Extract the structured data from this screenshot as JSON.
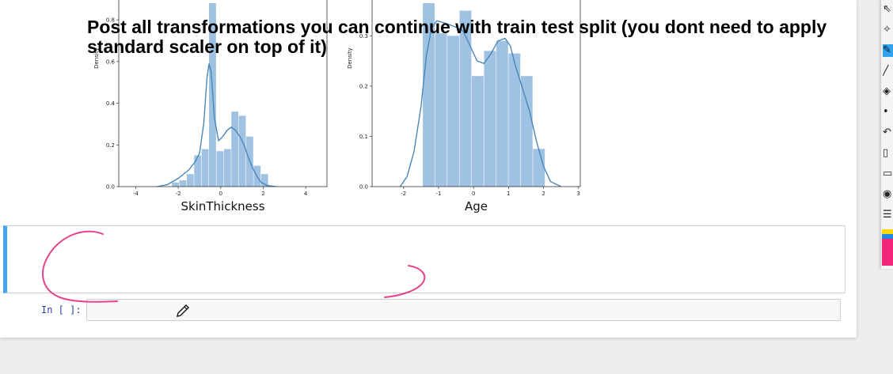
{
  "charts": {
    "skin": {
      "xlabel": "SkinThickness",
      "ylabel": "Density",
      "xlim": [
        -4.8,
        5.0
      ],
      "ylim": [
        0,
        0.88
      ],
      "xticks": [
        -4,
        -2,
        0,
        2,
        4
      ],
      "yticks": [
        0.0,
        0.2,
        0.4,
        0.6,
        0.8
      ],
      "ytick_labels": [
        "0.0",
        "0.2",
        "0.4",
        "0.6",
        "0.8"
      ],
      "xtick_labels": [
        "-4",
        "-2",
        "0",
        "2",
        "4"
      ],
      "bars": [
        {
          "x0": -2.3,
          "x1": -1.95,
          "h": 0.02
        },
        {
          "x0": -1.95,
          "x1": -1.6,
          "h": 0.03
        },
        {
          "x0": -1.6,
          "x1": -1.25,
          "h": 0.06
        },
        {
          "x0": -1.25,
          "x1": -0.9,
          "h": 0.15
        },
        {
          "x0": -0.9,
          "x1": -0.55,
          "h": 0.18
        },
        {
          "x0": -0.55,
          "x1": -0.2,
          "h": 0.95
        },
        {
          "x0": -0.2,
          "x1": 0.15,
          "h": 0.17
        },
        {
          "x0": 0.15,
          "x1": 0.5,
          "h": 0.18
        },
        {
          "x0": 0.5,
          "x1": 0.85,
          "h": 0.36
        },
        {
          "x0": 0.85,
          "x1": 1.2,
          "h": 0.34
        },
        {
          "x0": 1.2,
          "x1": 1.55,
          "h": 0.24
        },
        {
          "x0": 1.55,
          "x1": 1.9,
          "h": 0.1
        },
        {
          "x0": 1.9,
          "x1": 2.25,
          "h": 0.06
        }
      ],
      "kde": [
        [
          -3.0,
          0.0
        ],
        [
          -2.5,
          0.01
        ],
        [
          -2.0,
          0.04
        ],
        [
          -1.5,
          0.08
        ],
        [
          -1.2,
          0.12
        ],
        [
          -1.0,
          0.16
        ],
        [
          -0.8,
          0.3
        ],
        [
          -0.65,
          0.52
        ],
        [
          -0.55,
          0.59
        ],
        [
          -0.45,
          0.55
        ],
        [
          -0.3,
          0.33
        ],
        [
          -0.1,
          0.22
        ],
        [
          0.1,
          0.24
        ],
        [
          0.3,
          0.27
        ],
        [
          0.5,
          0.285
        ],
        [
          0.7,
          0.27
        ],
        [
          0.9,
          0.24
        ],
        [
          1.1,
          0.2
        ],
        [
          1.3,
          0.14
        ],
        [
          1.5,
          0.09
        ],
        [
          1.7,
          0.05
        ],
        [
          1.9,
          0.02
        ],
        [
          2.2,
          0.005
        ],
        [
          2.6,
          0.0
        ]
      ]
    },
    "age": {
      "xlabel": "Age",
      "ylabel": "Density",
      "xlim": [
        -2.9,
        3.05
      ],
      "ylim": [
        0,
        0.365
      ],
      "xticks": [
        -2,
        -1,
        0,
        1,
        2,
        3
      ],
      "yticks": [
        0.0,
        0.1,
        0.2,
        0.3
      ],
      "ytick_labels": [
        "0.0",
        "0.1",
        "0.2",
        "0.3"
      ],
      "xtick_labels": [
        "-2",
        "-1",
        "0",
        "1",
        "2",
        "3"
      ],
      "bars": [
        {
          "x0": -1.45,
          "x1": -1.1,
          "h": 0.42
        },
        {
          "x0": -1.1,
          "x1": -0.75,
          "h": 0.305
        },
        {
          "x0": -0.75,
          "x1": -0.4,
          "h": 0.3
        },
        {
          "x0": -0.4,
          "x1": -0.05,
          "h": 0.35
        },
        {
          "x0": -0.05,
          "x1": 0.3,
          "h": 0.22
        },
        {
          "x0": 0.3,
          "x1": 0.65,
          "h": 0.27
        },
        {
          "x0": 0.65,
          "x1": 1.0,
          "h": 0.29
        },
        {
          "x0": 1.0,
          "x1": 1.35,
          "h": 0.265
        },
        {
          "x0": 1.35,
          "x1": 1.7,
          "h": 0.22
        },
        {
          "x0": 1.7,
          "x1": 2.05,
          "h": 0.075
        }
      ],
      "kde": [
        [
          -2.1,
          0.0
        ],
        [
          -1.9,
          0.02
        ],
        [
          -1.7,
          0.07
        ],
        [
          -1.5,
          0.16
        ],
        [
          -1.35,
          0.26
        ],
        [
          -1.2,
          0.315
        ],
        [
          -1.05,
          0.33
        ],
        [
          -0.8,
          0.325
        ],
        [
          -0.5,
          0.317
        ],
        [
          -0.3,
          0.31
        ],
        [
          -0.1,
          0.28
        ],
        [
          0.1,
          0.25
        ],
        [
          0.3,
          0.245
        ],
        [
          0.5,
          0.265
        ],
        [
          0.7,
          0.29
        ],
        [
          0.9,
          0.295
        ],
        [
          1.05,
          0.28
        ],
        [
          1.2,
          0.24
        ],
        [
          1.4,
          0.195
        ],
        [
          1.6,
          0.15
        ],
        [
          1.8,
          0.09
        ],
        [
          2.0,
          0.04
        ],
        [
          2.2,
          0.01
        ],
        [
          2.5,
          0.0
        ]
      ]
    }
  },
  "markdown": {
    "text": "Post all transformations you can continue with train test split (you dont need to apply standard scaler on top of it)"
  },
  "code_cell": {
    "prompt": "In [ ]:",
    "value": ""
  },
  "colors": {
    "bar_fill": "#9fc2e3",
    "kde_line": "#4a86b8",
    "cell_accent": "#42a5f5",
    "annotation": "#e8408a"
  },
  "toolbar": {
    "tools": [
      {
        "name": "select-tool",
        "glyph": "⇖"
      },
      {
        "name": "clear-tool",
        "glyph": "✧"
      },
      {
        "name": "pen-tool",
        "glyph": "✎",
        "active": true
      },
      {
        "name": "line-tool",
        "glyph": "╱"
      },
      {
        "name": "highlighter-tool",
        "glyph": "◈"
      },
      {
        "name": "dot-tool",
        "glyph": "•"
      },
      {
        "name": "undo-tool",
        "glyph": "↶"
      },
      {
        "name": "trash-tool",
        "glyph": "▯"
      },
      {
        "name": "whiteboard-tool",
        "glyph": "▭"
      },
      {
        "name": "camera-tool",
        "glyph": "◉"
      },
      {
        "name": "notes-tool",
        "glyph": "☰"
      }
    ],
    "swatch_colors": [
      "#ffd600",
      "#1e88e5",
      "#f4267a"
    ]
  }
}
